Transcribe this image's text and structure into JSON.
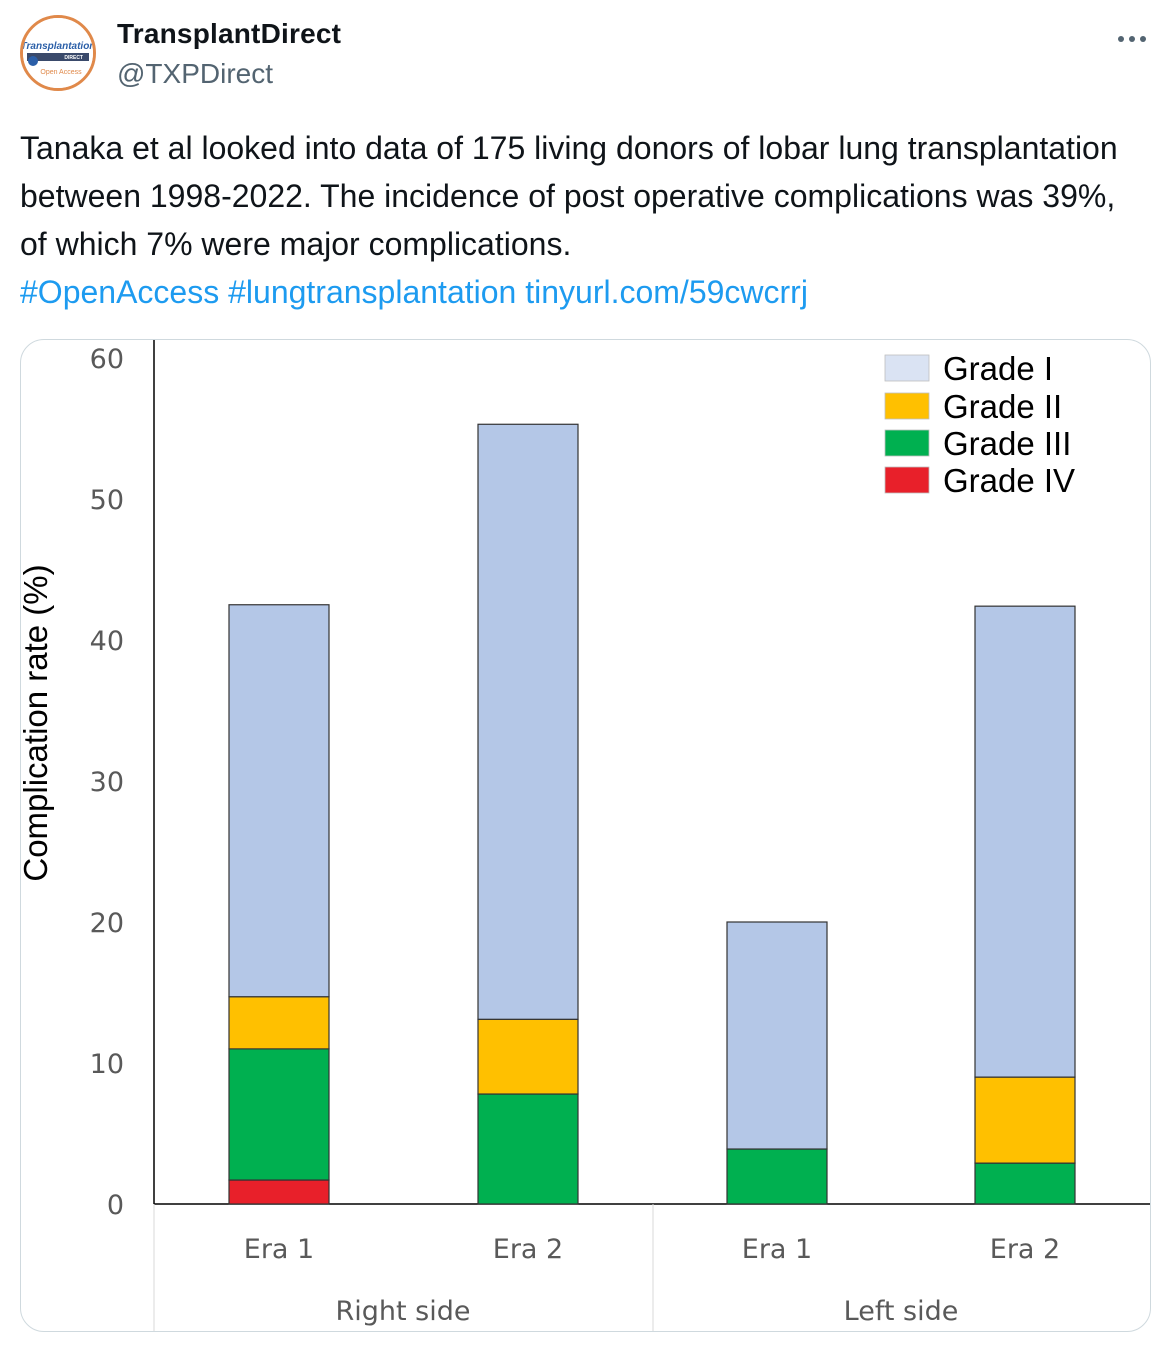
{
  "tweet": {
    "author_name": "TransplantDirect",
    "author_handle": "@TXPDirect",
    "more_icon": "more-horizontal-icon",
    "avatar_logo_text": "Transplantation",
    "avatar_logo_subtext": "DIRECT",
    "avatar_logo_caption": "Open Access",
    "text": "Tanaka et al looked into data of 175 living donors of lobar lung transplantation between 1998-2022. The incidence of post operative complications was 39%, of which 7% were major complications.",
    "hashtag_1": "#OpenAccess",
    "hashtag_2": "#lungtransplantation",
    "link": "tinyurl.com/59cwcrrj"
  },
  "colors": {
    "link": "#1d9bf0",
    "avatar_ring": "#e0894a",
    "grade_1": "#b4c7e7",
    "grade_1_legend": "#dae3f3",
    "grade_2": "#ffc000",
    "grade_3": "#00b050",
    "grade_4": "#e8202a"
  },
  "chart_data": {
    "type": "bar",
    "stacked": true,
    "ylabel": "Complication rate (%)",
    "xlabel": "",
    "title": "",
    "ylim": [
      0,
      60
    ],
    "yticks": [
      "0",
      "10",
      "20",
      "30",
      "40",
      "50",
      "60"
    ],
    "categories": [
      "Era 1",
      "Era 2",
      "Era 1",
      "Era 2"
    ],
    "groups": [
      {
        "label": "Right side",
        "categories": [
          "Era 1",
          "Era 2"
        ]
      },
      {
        "label": "Left side",
        "categories": [
          "Era 1",
          "Era 2"
        ]
      }
    ],
    "series": [
      {
        "name": "Grade IV",
        "values": [
          1.7,
          0,
          0,
          0
        ]
      },
      {
        "name": "Grade III",
        "values": [
          9.3,
          7.8,
          3.9,
          2.9
        ]
      },
      {
        "name": "Grade II",
        "values": [
          3.7,
          5.3,
          0,
          6.1
        ]
      },
      {
        "name": "Grade I",
        "values": [
          27.8,
          42.2,
          16.1,
          33.4
        ]
      }
    ],
    "legend": [
      "Grade I",
      "Grade II",
      "Grade III",
      "Grade IV"
    ],
    "legend_position": "top-right",
    "grid": false
  }
}
